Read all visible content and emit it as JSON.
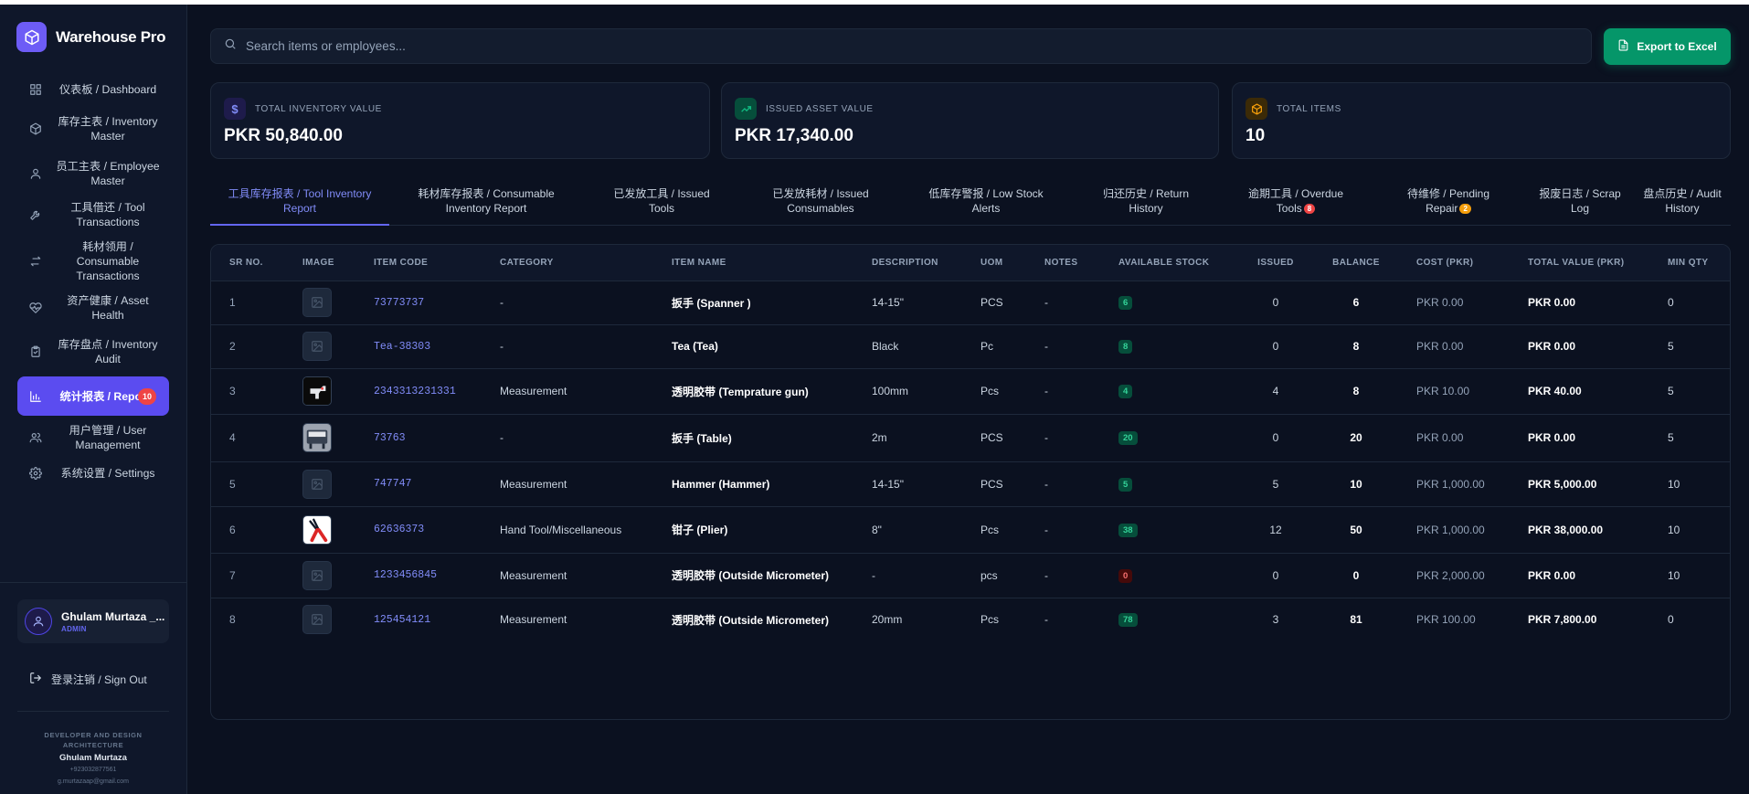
{
  "app": {
    "name": "Warehouse Pro"
  },
  "sidebar": {
    "items": [
      {
        "label": "仪表板 / Dashboard",
        "icon": "dashboard-icon"
      },
      {
        "label": "库存主表 / Inventory Master",
        "icon": "box-icon"
      },
      {
        "label": "员工主表 / Employee Master",
        "icon": "user-icon"
      },
      {
        "label": "工具借还 / Tool Transactions",
        "icon": "wrench-icon"
      },
      {
        "label": "耗材领用 / Consumable Transactions",
        "icon": "swap-icon"
      },
      {
        "label": "资产健康 / Asset Health",
        "icon": "heart-pulse-icon"
      },
      {
        "label": "库存盘点 / Inventory Audit",
        "icon": "clipboard-check-icon"
      },
      {
        "label": "统计报表 / Reports",
        "icon": "bar-chart-icon",
        "badge": "10",
        "active": true
      },
      {
        "label": "用户管理 / User Management",
        "icon": "users-icon"
      },
      {
        "label": "系统设置 / Settings",
        "icon": "gear-icon"
      }
    ]
  },
  "user": {
    "name": "Ghulam Murtaza _...",
    "role": "ADMIN"
  },
  "signout_label": "登录注销 / Sign Out",
  "credit": {
    "title": "DEVELOPER AND DESIGN ARCHITECTURE",
    "name": "Ghulam Murtaza",
    "phone": "+923032877561",
    "email": "g.murtazaap@gmail.com"
  },
  "search": {
    "placeholder": "Search items or employees..."
  },
  "export_label": "Export to Excel",
  "kpis": [
    {
      "label": "TOTAL INVENTORY VALUE",
      "value": "PKR 50,840.00",
      "icon": "dollar-icon",
      "color": "#818cf8"
    },
    {
      "label": "ISSUED ASSET VALUE",
      "value": "PKR 17,340.00",
      "icon": "trending-up-icon",
      "color": "#10b981"
    },
    {
      "label": "TOTAL ITEMS",
      "value": "10",
      "icon": "package-icon",
      "color": "#f59e0b"
    }
  ],
  "tabs": [
    {
      "line1": "工具库存报表 / Tool Inventory",
      "line2": "Report",
      "active": true
    },
    {
      "line1": "耗材库存报表 / Consumable",
      "line2": "Inventory Report"
    },
    {
      "line1": "已发放工具 / Issued",
      "line2": "Tools"
    },
    {
      "line1": "已发放耗材 / Issued",
      "line2": "Consumables"
    },
    {
      "line1": "低库存警报 / Low Stock",
      "line2": "Alerts"
    },
    {
      "line1": "归还历史 / Return",
      "line2": "History"
    },
    {
      "line1": "逾期工具 / Overdue",
      "line2": "Tools",
      "badge": "8",
      "badge_color": "#ef4444"
    },
    {
      "line1": "待维修 / Pending",
      "line2": "Repair",
      "badge": "2",
      "badge_color": "#f59e0b"
    },
    {
      "line1": "报废日志 / Scrap",
      "line2": "Log"
    },
    {
      "line1": "盘点历史 / Audit",
      "line2": "History"
    }
  ],
  "table": {
    "headers": [
      "SR NO.",
      "IMAGE",
      "ITEM CODE",
      "CATEGORY",
      "ITEM NAME",
      "DESCRIPTION",
      "UOM",
      "NOTES",
      "AVAILABLE STOCK",
      "ISSUED",
      "BALANCE",
      "COST (PKR)",
      "TOTAL VALUE (PKR)",
      "MIN QTY"
    ],
    "rows": [
      {
        "sr": "1",
        "image": "placeholder",
        "code": "73773737",
        "category": "-",
        "name": "扳手 (Spanner )",
        "desc": "14-15\"",
        "uom": "PCS",
        "notes": "-",
        "stock": "6",
        "issued": "0",
        "balance": "6",
        "cost": "PKR 0.00",
        "total": "PKR 0.00",
        "min": "0"
      },
      {
        "sr": "2",
        "image": "placeholder",
        "code": "Tea-38303",
        "category": "-",
        "name": "Tea (Tea)",
        "desc": "Black",
        "uom": "Pc",
        "notes": "-",
        "stock": "8",
        "issued": "0",
        "balance": "8",
        "cost": "PKR 0.00",
        "total": "PKR 0.00",
        "min": "5"
      },
      {
        "sr": "3",
        "image": "temp-gun",
        "code": "2343313231331",
        "category": "Measurement",
        "name": "透明胶带 (Temprature gun)",
        "desc": "100mm",
        "uom": "Pcs",
        "notes": "-",
        "stock": "4",
        "issued": "4",
        "balance": "8",
        "cost": "PKR 10.00",
        "total": "PKR 40.00",
        "min": "5"
      },
      {
        "sr": "4",
        "image": "table",
        "code": "73763",
        "category": "-",
        "name": "扳手 (Table)",
        "desc": "2m",
        "uom": "PCS",
        "notes": "-",
        "stock": "20",
        "issued": "0",
        "balance": "20",
        "cost": "PKR 0.00",
        "total": "PKR 0.00",
        "min": "5"
      },
      {
        "sr": "5",
        "image": "placeholder",
        "code": "747747",
        "category": "Measurement",
        "name": "Hammer (Hammer)",
        "desc": "14-15\"",
        "uom": "PCS",
        "notes": "-",
        "stock": "5",
        "issued": "5",
        "balance": "10",
        "cost": "PKR 1,000.00",
        "total": "PKR 5,000.00",
        "min": "10"
      },
      {
        "sr": "6",
        "image": "plier",
        "code": "62636373",
        "category": "Hand Tool/Miscellaneous",
        "name": "钳子 (Plier)",
        "desc": "8\"",
        "uom": "Pcs",
        "notes": "-",
        "stock": "38",
        "issued": "12",
        "balance": "50",
        "cost": "PKR 1,000.00",
        "total": "PKR 38,000.00",
        "min": "10"
      },
      {
        "sr": "7",
        "image": "placeholder",
        "code": "1233456845",
        "category": "Measurement",
        "name": "透明胶带 (Outside Micrometer)",
        "desc": "-",
        "uom": "pcs",
        "notes": "-",
        "stock": "0",
        "issued": "0",
        "balance": "0",
        "cost": "PKR 2,000.00",
        "total": "PKR 0.00",
        "min": "10"
      },
      {
        "sr": "8",
        "image": "placeholder",
        "code": "125454121",
        "category": "Measurement",
        "name": "透明胶带 (Outside Micrometer)",
        "desc": "20mm",
        "uom": "Pcs",
        "notes": "-",
        "stock": "78",
        "issued": "3",
        "balance": "81",
        "cost": "PKR 100.00",
        "total": "PKR 7,800.00",
        "min": "0"
      }
    ]
  }
}
